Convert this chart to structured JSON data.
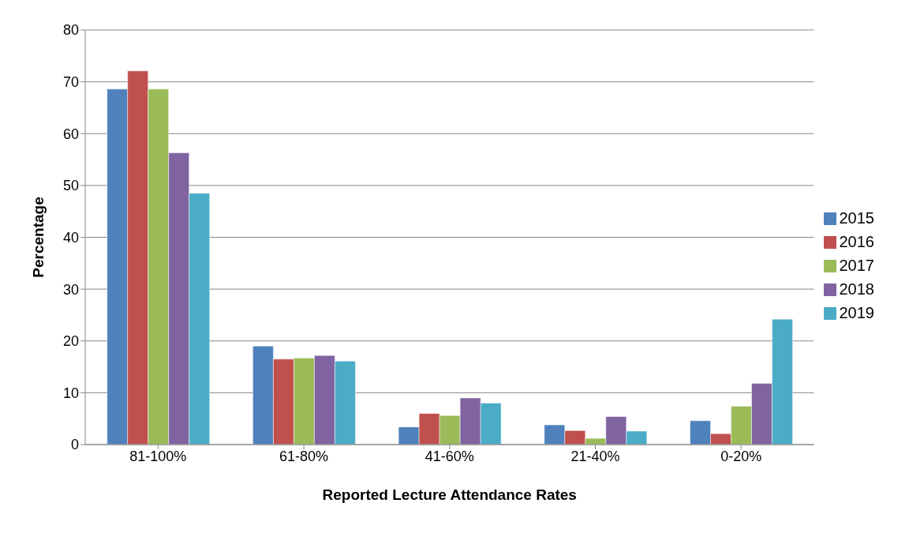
{
  "chart_data": {
    "type": "bar",
    "xlabel": "Reported Lecture Attendance Rates",
    "ylabel": "Percentage",
    "categories": [
      "81-100%",
      "61-80%",
      "41-60%",
      "21-40%",
      "0-20%"
    ],
    "series": [
      {
        "name": "2015",
        "color": "#4f81bd",
        "values": [
          68.6,
          19.0,
          3.4,
          3.8,
          4.6
        ]
      },
      {
        "name": "2016",
        "color": "#c0504d",
        "values": [
          72.1,
          16.5,
          6.0,
          2.7,
          2.1
        ]
      },
      {
        "name": "2017",
        "color": "#9bbb59",
        "values": [
          68.6,
          16.7,
          5.6,
          1.2,
          7.4
        ]
      },
      {
        "name": "2018",
        "color": "#8064a2",
        "values": [
          56.3,
          17.2,
          9.0,
          5.4,
          11.8
        ]
      },
      {
        "name": "2019",
        "color": "#4bacc6",
        "values": [
          48.5,
          16.1,
          8.0,
          2.6,
          24.2
        ]
      }
    ],
    "ylim": [
      0,
      80
    ],
    "yticks": [
      0,
      10,
      20,
      30,
      40,
      50,
      60,
      70,
      80
    ],
    "grid": "y",
    "legend": "right"
  }
}
